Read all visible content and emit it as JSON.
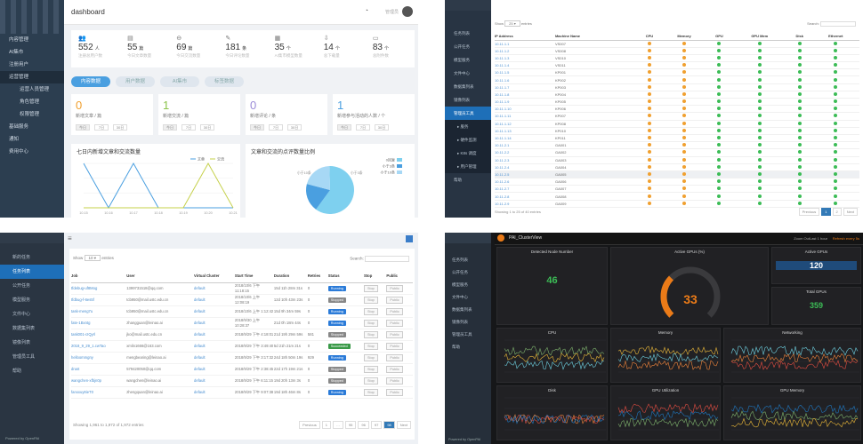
{
  "p1": {
    "title": "dashboard",
    "user": "管理员",
    "sidebar": [
      {
        "label": "内容管理",
        "sel": false
      },
      {
        "label": "AI集市",
        "sel": false
      },
      {
        "label": "注册用户",
        "sel": false
      },
      {
        "label": "运营管理",
        "sel": true
      },
      {
        "label": "运营人员管理",
        "sub": true
      },
      {
        "label": "角色管理",
        "sub": true
      },
      {
        "label": "权限管理",
        "sub": true
      },
      {
        "label": "基础服务",
        "sel": false
      },
      {
        "label": "通知",
        "sel": false
      },
      {
        "label": "费用中心",
        "sel": false
      }
    ],
    "stats": [
      {
        "icon": "users-icon",
        "glyph": "👥",
        "value": "552",
        "unit": "人",
        "label": "注册总用户数"
      },
      {
        "icon": "doc-icon",
        "glyph": "▤",
        "value": "55",
        "unit": "篇",
        "label": "今日文章数量"
      },
      {
        "icon": "chat-icon",
        "glyph": "⊖",
        "value": "69",
        "unit": "篇",
        "label": "今日交流数量"
      },
      {
        "icon": "edit-icon",
        "glyph": "✎",
        "value": "181",
        "unit": "条",
        "label": "今日评论数量"
      },
      {
        "icon": "bar-icon",
        "glyph": "▦",
        "value": "35",
        "unit": "个",
        "label": "AI集市模型数量"
      },
      {
        "icon": "download-icon",
        "glyph": "⇩",
        "value": "14",
        "unit": "个",
        "label": "总下载量"
      },
      {
        "icon": "file-icon",
        "glyph": "▭",
        "value": "83",
        "unit": "个",
        "label": "总附件数"
      }
    ],
    "tabs": [
      "内容数据",
      "用户数据",
      "AI集市",
      "标签数据"
    ],
    "cards": [
      {
        "n": "0",
        "d": "新增文章 / 篇",
        "color": "#f0a030"
      },
      {
        "n": "1",
        "d": "新增交流 / 篇",
        "color": "#8bc34a"
      },
      {
        "n": "0",
        "d": "新增评论 / 条",
        "color": "#9b8bd8"
      },
      {
        "n": "1",
        "d": "新增参与活动的人数 / 个",
        "color": "#4a9fe0"
      }
    ],
    "periods": [
      "今日",
      "7日",
      "30日"
    ],
    "chart1": {
      "title": "七日内新增文章和交流数量",
      "legend": [
        "文章",
        "交流"
      ],
      "x": [
        "10.15",
        "10.16",
        "10.17",
        "10.18",
        "10.19",
        "10.20",
        "10.21"
      ]
    },
    "chart2": {
      "title": "文章和交流的点评数量比例",
      "legend": [
        "0回复",
        "小于3条",
        "小于10条"
      ],
      "labels": [
        "小于10条",
        "小于3条"
      ]
    }
  },
  "p2": {
    "show": "Show",
    "entries": "entries",
    "search": "Search:",
    "cols": [
      "IP Address",
      "Machine Name",
      "CPU",
      "Memory",
      "GPU",
      "GPU Mem",
      "Disk",
      "Ethernet"
    ],
    "sidebar": [
      {
        "label": "任务列表"
      },
      {
        "label": "公开任务"
      },
      {
        "label": "模型服务"
      },
      {
        "label": "文件中心"
      },
      {
        "label": "数据集列表"
      },
      {
        "label": "镜像列表"
      },
      {
        "label": "管理员工具",
        "hl": true
      },
      {
        "label": "▸ 服务",
        "sub": true
      },
      {
        "label": "▸ 硬件监测",
        "sub": true
      },
      {
        "label": "▸ K8s 调度",
        "sub": true
      },
      {
        "label": "▸ 用户管理",
        "sub": true
      },
      {
        "label": "帮助"
      }
    ],
    "rows": [
      {
        "ip": "10.11.1.1",
        "name": "VS007",
        "s": "oogggg"
      },
      {
        "ip": "10.11.1.2",
        "name": "VS008",
        "s": "oogggg"
      },
      {
        "ip": "10.11.1.3",
        "name": "VS010",
        "s": "oogggg"
      },
      {
        "ip": "10.11.1.4",
        "name": "VS011",
        "s": "oogggg"
      },
      {
        "ip": "10.11.1.5",
        "name": "KP001",
        "s": "oogggg"
      },
      {
        "ip": "10.11.1.6",
        "name": "KP002",
        "s": "oogggg"
      },
      {
        "ip": "10.11.1.7",
        "name": "KP003",
        "s": "oogggg"
      },
      {
        "ip": "10.11.1.8",
        "name": "KP004",
        "s": "oogggg"
      },
      {
        "ip": "10.11.1.9",
        "name": "KP005",
        "s": "oogggg"
      },
      {
        "ip": "10.11.1.10",
        "name": "KP006",
        "s": "oogggg"
      },
      {
        "ip": "10.11.1.11",
        "name": "KP007",
        "s": "oogggg"
      },
      {
        "ip": "10.11.1.12",
        "name": "KP008",
        "s": "oogggg"
      },
      {
        "ip": "10.11.1.13",
        "name": "KP010",
        "s": "oogggg"
      },
      {
        "ip": "10.11.1.14",
        "name": "KP011",
        "s": "oogggg"
      },
      {
        "ip": "10.11.2.1",
        "name": "GA001",
        "s": "oogggg"
      },
      {
        "ip": "10.11.2.2",
        "name": "GA002",
        "s": "oogggg"
      },
      {
        "ip": "10.11.2.3",
        "name": "GA003",
        "s": "oogggg"
      },
      {
        "ip": "10.11.2.4",
        "name": "GA004",
        "s": "oogggg"
      },
      {
        "ip": "10.11.2.5",
        "name": "GA005",
        "s": "oogggg"
      },
      {
        "ip": "10.11.2.6",
        "name": "GA006",
        "s": "oogggg"
      },
      {
        "ip": "10.11.2.7",
        "name": "GA007",
        "s": "oogggg"
      },
      {
        "ip": "10.11.2.8",
        "name": "GA008",
        "s": "oogggg"
      },
      {
        "ip": "10.11.2.9",
        "name": "GA009",
        "s": "oogggg"
      }
    ],
    "footer": "Showing 1 to 25 of 40 entries",
    "pages": [
      "Previous",
      "1",
      "2",
      "Next"
    ]
  },
  "p3": {
    "sidebar": [
      {
        "label": "新的任务"
      },
      {
        "label": "任务列表",
        "hl": true
      },
      {
        "label": "公开任务"
      },
      {
        "label": "模型服务"
      },
      {
        "label": "文件中心"
      },
      {
        "label": "数据集列表"
      },
      {
        "label": "镜像列表"
      },
      {
        "label": "管理员工具"
      },
      {
        "label": "帮助"
      }
    ],
    "show": "Show",
    "entries": "entries",
    "search": "Search:",
    "cols": [
      "Job",
      "User",
      "Virtual Cluster",
      "Start Time",
      "Duration",
      "Retries",
      "Status",
      "Stop",
      "Public"
    ],
    "rows": [
      {
        "job": "tfdebug-uf8Mog",
        "user": "1399731518@qq.com",
        "vc": "default",
        "st": "2018/10/6 下午 11:18:15",
        "dur": "15d 11h 28m 31s",
        "r": "0",
        "status": "Running"
      },
      {
        "job": "tfdbug-f-6es5f",
        "user": "tcb950@mail.ustc.edu.cn",
        "vc": "default",
        "st": "2018/10/6 上午 12:08:19",
        "dur": "12d 10h 43m 23s",
        "r": "0",
        "status": "Stopped"
      },
      {
        "job": "task-meng7u",
        "user": "tcb950@mail.ustc.edu.cn",
        "vc": "default",
        "st": "2018/10/6 上午 1:12:42",
        "dur": "15d 9h 34m 59s",
        "r": "0",
        "status": "Running"
      },
      {
        "job": "fate-1Bxntg",
        "user": "zhangguan@leinao.ai",
        "vc": "default",
        "st": "2018/9/30 上午 10:28:37",
        "dur": "21d 0h 18m 44s",
        "r": "0",
        "status": "Running"
      },
      {
        "job": "task001-cIQyrl",
        "user": "jko@mail.ustc.edu.cn",
        "vc": "default",
        "st": "2018/9/29 下午 4:18:01",
        "dur": "21d 19h 29m 59s",
        "r": "581",
        "status": "Stopped"
      },
      {
        "job": "2018_9_29_1.cwTao",
        "user": "xmlin1666@163.com",
        "vc": "default",
        "st": "2018/9/29 下午 3:49:40",
        "dur": "5d 21h 21m 21s",
        "r": "0",
        "status": "Succeeded"
      },
      {
        "job": "helloommgny",
        "user": "mengbearing@leinao.ai",
        "vc": "default",
        "st": "2018/9/29 下午 3:17:32",
        "dur": "24d 18h 50m 19s",
        "r": "929",
        "status": "Running"
      },
      {
        "job": "drust",
        "user": "579420050@qq.com",
        "vc": "default",
        "st": "2018/9/29 下午 2:38:45",
        "dur": "22d 17h 19m 21s",
        "r": "0",
        "status": "Stopped"
      },
      {
        "job": "wangchen-xfbjn0p",
        "user": "wangchen@leinao.ai",
        "vc": "default",
        "st": "2018/9/29 下午 6:11:15",
        "dur": "19d 20h 13m 3s",
        "r": "0",
        "status": "Stopped"
      },
      {
        "job": "fanxxuy8ieT0",
        "user": "zhengquan@leinao.ai",
        "vc": "default",
        "st": "2018/9/29 下午 9:07:38",
        "dur": "19d 18h 46m 8s",
        "r": "0",
        "status": "Running"
      }
    ],
    "footer": "Showing 1,961 to 1,972 of 1,972 entries",
    "pages": [
      "Previous",
      "1",
      "…",
      "95",
      "96",
      "97",
      "98",
      "Next"
    ],
    "powered": "Powered by OpenPAI"
  },
  "p4": {
    "sidebar": [
      "任务列表",
      "公开任务",
      "模型服务",
      "文件中心",
      "数据集列表",
      "镜像列表",
      "管理员工具",
      "帮助"
    ],
    "dash": "PAI_ClusterView",
    "topright": [
      "Zoom Out",
      "Last 1 hour",
      "Refresh every 5s"
    ],
    "panels": {
      "nodes": {
        "title": "Detected Node Number",
        "value": "46"
      },
      "gauge": {
        "title": "Active GPUs (%)",
        "value": "33"
      },
      "agpu": {
        "title": "Active GPUs",
        "value": "120"
      },
      "tgpu": {
        "title": "Total GPUs",
        "value": "359"
      },
      "cpu": "CPU",
      "mem": "Memory",
      "net": "Networking",
      "disk": "Disk",
      "gutil": "GPU Utilization",
      "gmem": "GPU Memory"
    },
    "powered": "Powered by OpenPAI"
  }
}
